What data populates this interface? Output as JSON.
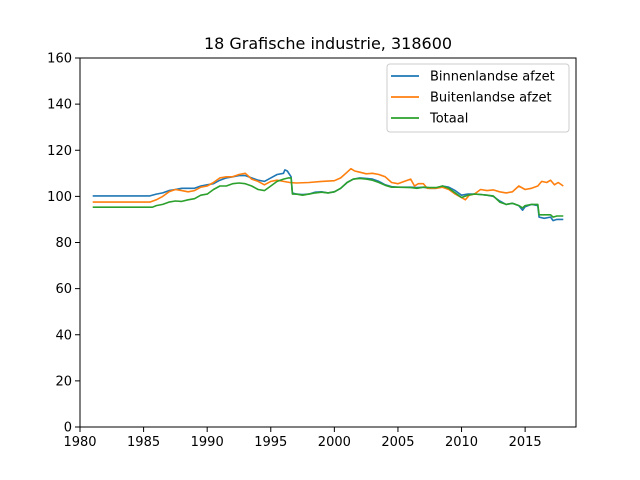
{
  "chart_data": {
    "type": "line",
    "title": "18 Grafische industrie, 318600",
    "xlabel": "",
    "ylabel": "",
    "xlim": [
      1980,
      2019
    ],
    "ylim": [
      0,
      160
    ],
    "xticks": [
      1980,
      1985,
      1990,
      1995,
      2000,
      2005,
      2010,
      2015
    ],
    "yticks": [
      0,
      20,
      40,
      60,
      80,
      100,
      120,
      140,
      160
    ],
    "grid": false,
    "legend": "top-right",
    "series": [
      {
        "name": "Binnenlandse afzet",
        "color": "#1f77b4",
        "points": [
          [
            1981.0,
            100.2
          ],
          [
            1985.5,
            100.2
          ],
          [
            1986.0,
            101.0
          ],
          [
            1986.5,
            101.5
          ],
          [
            1987.0,
            102.5
          ],
          [
            1987.5,
            103.0
          ],
          [
            1988.0,
            103.5
          ],
          [
            1989.0,
            103.5
          ],
          [
            1989.5,
            104.5
          ],
          [
            1990.0,
            105.0
          ],
          [
            1990.5,
            105.5
          ],
          [
            1991.0,
            107.0
          ],
          [
            1991.5,
            108.0
          ],
          [
            1992.0,
            108.5
          ],
          [
            1992.5,
            109.0
          ],
          [
            1993.0,
            109.0
          ],
          [
            1993.5,
            108.0
          ],
          [
            1994.0,
            107.0
          ],
          [
            1994.5,
            106.5
          ],
          [
            1995.0,
            108.0
          ],
          [
            1995.5,
            109.5
          ],
          [
            1996.0,
            110.0
          ],
          [
            1996.1,
            111.5
          ],
          [
            1996.3,
            111.0
          ],
          [
            1996.6,
            108.5
          ],
          [
            1996.7,
            101.5
          ],
          [
            1997.0,
            101.0
          ],
          [
            1997.5,
            100.8
          ],
          [
            1998.0,
            101.0
          ],
          [
            1998.5,
            101.8
          ],
          [
            1999.0,
            102.0
          ],
          [
            1999.5,
            101.5
          ],
          [
            2000.0,
            102.0
          ],
          [
            2000.5,
            103.5
          ],
          [
            2001.0,
            106.0
          ],
          [
            2001.5,
            107.5
          ],
          [
            2002.0,
            108.0
          ],
          [
            2002.5,
            107.8
          ],
          [
            2003.0,
            107.5
          ],
          [
            2003.5,
            106.5
          ],
          [
            2004.0,
            105.0
          ],
          [
            2004.5,
            104.2
          ],
          [
            2005.0,
            104.0
          ],
          [
            2006.0,
            104.0
          ],
          [
            2006.5,
            103.8
          ],
          [
            2007.0,
            104.0
          ],
          [
            2007.5,
            103.5
          ],
          [
            2008.0,
            103.5
          ],
          [
            2008.5,
            104.5
          ],
          [
            2009.0,
            104.0
          ],
          [
            2009.5,
            102.5
          ],
          [
            2010.0,
            100.5
          ],
          [
            2010.5,
            101.0
          ],
          [
            2011.0,
            101.0
          ],
          [
            2011.5,
            100.8
          ],
          [
            2012.0,
            100.5
          ],
          [
            2012.5,
            100.0
          ],
          [
            2013.0,
            98.0
          ],
          [
            2013.5,
            96.5
          ],
          [
            2014.0,
            97.0
          ],
          [
            2014.5,
            96.0
          ],
          [
            2014.8,
            94.0
          ],
          [
            2015.0,
            95.5
          ],
          [
            2015.5,
            96.5
          ],
          [
            2016.0,
            96.0
          ],
          [
            2016.1,
            91.0
          ],
          [
            2016.5,
            90.5
          ],
          [
            2017.0,
            91.0
          ],
          [
            2017.2,
            89.5
          ],
          [
            2017.5,
            90.0
          ],
          [
            2018.0,
            90.0
          ]
        ]
      },
      {
        "name": "Buitenlandse afzet",
        "color": "#ff7f0e",
        "points": [
          [
            1981.0,
            97.5
          ],
          [
            1985.5,
            97.5
          ],
          [
            1986.0,
            98.5
          ],
          [
            1986.5,
            100.0
          ],
          [
            1987.0,
            102.0
          ],
          [
            1987.5,
            103.0
          ],
          [
            1988.0,
            102.5
          ],
          [
            1988.5,
            102.0
          ],
          [
            1989.0,
            102.5
          ],
          [
            1989.5,
            104.0
          ],
          [
            1990.0,
            104.5
          ],
          [
            1990.5,
            106.0
          ],
          [
            1991.0,
            108.0
          ],
          [
            1991.5,
            108.5
          ],
          [
            1992.0,
            108.5
          ],
          [
            1992.5,
            109.5
          ],
          [
            1993.0,
            110.0
          ],
          [
            1993.5,
            107.5
          ],
          [
            1994.0,
            106.5
          ],
          [
            1994.5,
            105.0
          ],
          [
            1995.0,
            106.5
          ],
          [
            1995.5,
            107.0
          ],
          [
            1996.0,
            106.5
          ],
          [
            1996.5,
            106.0
          ],
          [
            1997.0,
            105.8
          ],
          [
            1998.0,
            106.0
          ],
          [
            1999.0,
            106.5
          ],
          [
            2000.0,
            106.8
          ],
          [
            2000.5,
            108.0
          ],
          [
            2001.0,
            110.5
          ],
          [
            2001.3,
            112.0
          ],
          [
            2001.6,
            111.0
          ],
          [
            2002.0,
            110.5
          ],
          [
            2002.5,
            109.8
          ],
          [
            2003.0,
            110.0
          ],
          [
            2003.5,
            109.5
          ],
          [
            2004.0,
            108.5
          ],
          [
            2004.5,
            106.0
          ],
          [
            2005.0,
            105.5
          ],
          [
            2005.5,
            106.5
          ],
          [
            2006.0,
            107.5
          ],
          [
            2006.3,
            104.5
          ],
          [
            2006.6,
            105.5
          ],
          [
            2007.0,
            105.5
          ],
          [
            2007.3,
            103.5
          ],
          [
            2008.0,
            103.5
          ],
          [
            2008.5,
            104.0
          ],
          [
            2009.0,
            103.0
          ],
          [
            2009.5,
            101.0
          ],
          [
            2010.0,
            99.5
          ],
          [
            2010.3,
            98.5
          ],
          [
            2010.6,
            100.5
          ],
          [
            2011.0,
            101.0
          ],
          [
            2011.5,
            103.0
          ],
          [
            2012.0,
            102.5
          ],
          [
            2012.5,
            102.8
          ],
          [
            2013.0,
            102.0
          ],
          [
            2013.5,
            101.5
          ],
          [
            2014.0,
            102.0
          ],
          [
            2014.5,
            104.5
          ],
          [
            2015.0,
            103.0
          ],
          [
            2015.5,
            103.5
          ],
          [
            2016.0,
            104.5
          ],
          [
            2016.3,
            106.5
          ],
          [
            2016.7,
            106.0
          ],
          [
            2017.0,
            107.0
          ],
          [
            2017.3,
            105.0
          ],
          [
            2017.6,
            106.0
          ],
          [
            2018.0,
            104.5
          ]
        ]
      },
      {
        "name": "Totaal",
        "color": "#2ca02c",
        "points": [
          [
            1981.0,
            95.3
          ],
          [
            1985.7,
            95.3
          ],
          [
            1986.0,
            96.0
          ],
          [
            1986.5,
            96.5
          ],
          [
            1987.0,
            97.5
          ],
          [
            1987.5,
            98.0
          ],
          [
            1988.0,
            97.8
          ],
          [
            1988.5,
            98.5
          ],
          [
            1989.0,
            99.0
          ],
          [
            1989.5,
            100.5
          ],
          [
            1990.0,
            101.0
          ],
          [
            1990.5,
            103.0
          ],
          [
            1991.0,
            104.5
          ],
          [
            1991.5,
            104.5
          ],
          [
            1992.0,
            105.5
          ],
          [
            1992.5,
            105.8
          ],
          [
            1993.0,
            105.5
          ],
          [
            1993.5,
            104.5
          ],
          [
            1994.0,
            103.0
          ],
          [
            1994.5,
            102.5
          ],
          [
            1995.0,
            104.5
          ],
          [
            1995.5,
            106.5
          ],
          [
            1996.0,
            107.5
          ],
          [
            1996.4,
            108.0
          ],
          [
            1996.6,
            108.0
          ],
          [
            1996.7,
            101.0
          ],
          [
            1997.0,
            101.0
          ],
          [
            1997.5,
            100.5
          ],
          [
            1998.0,
            101.0
          ],
          [
            1998.5,
            101.5
          ],
          [
            1999.0,
            101.8
          ],
          [
            1999.5,
            101.5
          ],
          [
            2000.0,
            102.0
          ],
          [
            2000.5,
            103.5
          ],
          [
            2001.0,
            106.0
          ],
          [
            2001.5,
            107.5
          ],
          [
            2002.0,
            107.8
          ],
          [
            2002.5,
            107.5
          ],
          [
            2003.0,
            107.0
          ],
          [
            2003.5,
            106.0
          ],
          [
            2004.0,
            104.8
          ],
          [
            2004.5,
            104.0
          ],
          [
            2005.0,
            104.0
          ],
          [
            2006.0,
            103.8
          ],
          [
            2006.5,
            103.5
          ],
          [
            2007.0,
            104.0
          ],
          [
            2007.5,
            103.8
          ],
          [
            2008.0,
            103.8
          ],
          [
            2008.5,
            104.5
          ],
          [
            2009.0,
            103.5
          ],
          [
            2009.5,
            101.5
          ],
          [
            2010.0,
            99.5
          ],
          [
            2010.5,
            100.5
          ],
          [
            2011.0,
            101.0
          ],
          [
            2011.5,
            100.8
          ],
          [
            2012.0,
            100.5
          ],
          [
            2012.5,
            100.2
          ],
          [
            2013.0,
            97.5
          ],
          [
            2013.5,
            96.5
          ],
          [
            2014.0,
            97.0
          ],
          [
            2014.5,
            96.0
          ],
          [
            2014.8,
            95.0
          ],
          [
            2015.0,
            96.0
          ],
          [
            2015.5,
            96.5
          ],
          [
            2016.0,
            96.5
          ],
          [
            2016.1,
            92.0
          ],
          [
            2016.5,
            92.0
          ],
          [
            2017.0,
            92.0
          ],
          [
            2017.2,
            91.0
          ],
          [
            2017.5,
            91.5
          ],
          [
            2018.0,
            91.5
          ]
        ]
      }
    ]
  }
}
